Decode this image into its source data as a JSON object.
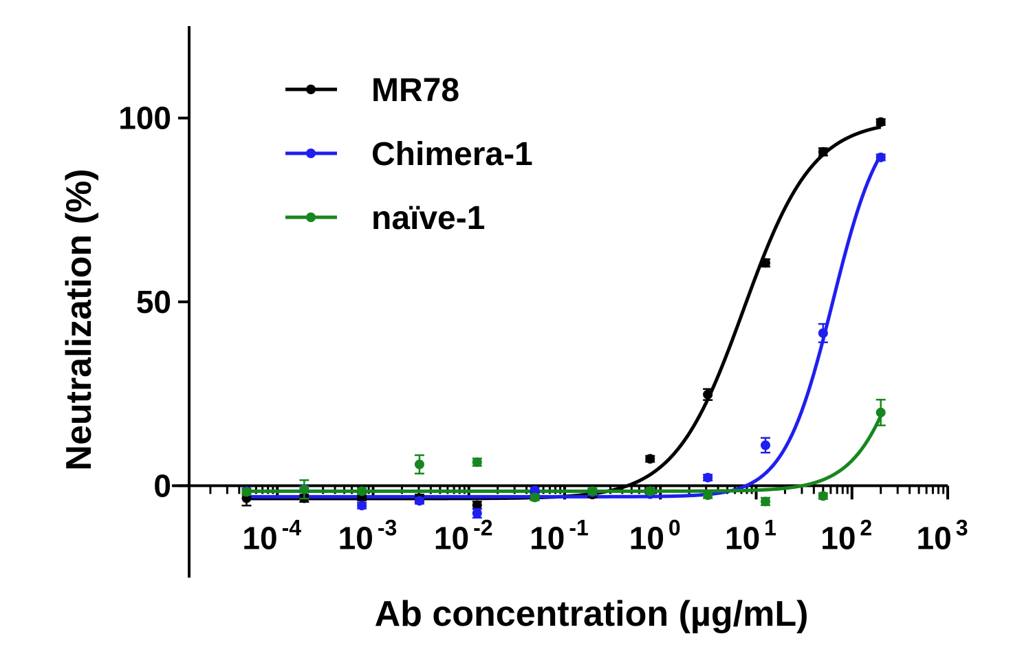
{
  "chart_data": {
    "type": "dose-response",
    "x_label": "Ab concentration (µg/mL)",
    "y_label": "Neutralization (%)",
    "x_scale": "log",
    "x": [
      4.77e-05,
      0.000191,
      0.000763,
      0.00305,
      0.0122,
      0.0488,
      0.195,
      0.78,
      3.125,
      12.5,
      50,
      200
    ],
    "xlim": [
      1.2e-05,
      1000
    ],
    "xticks": [
      {
        "value": 0.0001,
        "label": "10-4"
      },
      {
        "value": 0.001,
        "label": "10-3"
      },
      {
        "value": 0.01,
        "label": "10-2"
      },
      {
        "value": 0.1,
        "label": "10-1"
      },
      {
        "value": 1,
        "label": "100"
      },
      {
        "value": 10,
        "label": "101"
      },
      {
        "value": 100,
        "label": "102"
      },
      {
        "value": 1000,
        "label": "103"
      }
    ],
    "minor_ticks": true,
    "ylim": [
      -25,
      125
    ],
    "yticks": [
      0,
      50,
      100
    ],
    "legend": "upper left",
    "series": [
      {
        "name": "MR78",
        "color": "#000000",
        "values": [
          -3.4,
          -3.4,
          -3,
          -3.4,
          -5.3,
          -2.4,
          -2.4,
          7.3,
          24.8,
          60.6,
          90.8,
          98.9
        ],
        "errors": [
          2,
          1,
          1,
          1,
          1,
          0.8,
          0.8,
          0.8,
          1.5,
          1,
          1,
          0.8
        ],
        "fit": {
          "bottom": -3.5,
          "top": 99.5,
          "ec50": 7.4,
          "hill": 1.2
        }
      },
      {
        "name": "Chimera-1",
        "color": "#1f1ff0",
        "values": [
          -1.5,
          -0.9,
          -5.4,
          -4.1,
          -7.5,
          -1.3,
          -1.8,
          -2.3,
          2.2,
          11,
          41.5,
          89.3
        ],
        "errors": [
          0.8,
          0.8,
          0.8,
          0.8,
          1.2,
          0.8,
          0.8,
          0.8,
          0.8,
          2,
          2.5,
          0.8
        ],
        "fit": {
          "bottom": -3,
          "top": 103,
          "ec50": 63,
          "hill": 1.7
        }
      },
      {
        "name": "naïve-1",
        "color": "#17871d",
        "values": [
          -1.7,
          -1,
          -1.5,
          5.8,
          6.4,
          -3.2,
          -1.5,
          -1.5,
          -2.6,
          -4.3,
          -2.8,
          19.9
        ],
        "errors": [
          0.8,
          2.5,
          0.8,
          2.5,
          1,
          0.8,
          0.8,
          0.8,
          0.8,
          1,
          0.8,
          3.5
        ],
        "fit": {
          "bottom": -1.5,
          "top": 100,
          "ec50": 500,
          "hill": 1.5
        }
      }
    ]
  }
}
